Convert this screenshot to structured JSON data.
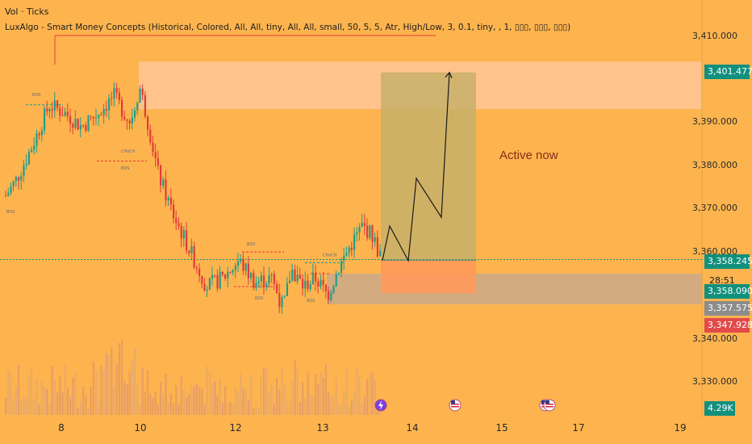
{
  "header": {
    "volume_label": "Vol · Ticks",
    "indicator_label": "LuxAlgo - Smart Money Concepts (Historical, Colored, All, All, tiny, All, All, small, 50, 5, 5, Atr, High/Low, 3, 0.1, tiny, , 1, ▯▯▯, ▯▯▯, ▯▯▯)"
  },
  "annotation": {
    "text": "Active now"
  },
  "price_axis": {
    "ticks": [
      "3,410.000",
      "3,390.000",
      "3,380.000",
      "3,370.000",
      "3,360.000",
      "3,340.000",
      "3,330.000"
    ]
  },
  "time_axis": {
    "ticks": [
      "8",
      "10",
      "12",
      "13",
      "14",
      "15",
      "17",
      "19"
    ]
  },
  "price_badges": {
    "target": "3,401.477",
    "last": "3,358.245",
    "countdown": "28:51",
    "bid": "3,358.090",
    "grey_level": "3,357.575",
    "stop": "3,347.928",
    "volume": "4.29K"
  },
  "smc_labels": [
    "BOS",
    "BOS",
    "CHoCH",
    "BOS",
    "BOS",
    "BOS",
    "CHoCH",
    "BOS"
  ],
  "colors": {
    "background": "#fdb44e",
    "bull_candle": "#1e9e8c",
    "bear_candle": "#e23b3b",
    "target_zone": "#c7b06a",
    "stop_zone": "#ff9a5a",
    "supply_zone": "#ffc8a0",
    "demand_zone": "#cba98a",
    "last_price_badge": "#11907e",
    "stop_badge": "#e24a4a",
    "target_badge": "#11907e"
  },
  "chart_data": {
    "type": "candlestick",
    "y_range": [
      3325,
      3415
    ],
    "x_ticks": [
      "8",
      "10",
      "12",
      "13",
      "14",
      "15",
      "17",
      "19"
    ],
    "last_price": 3358.245,
    "target_price": 3401.477,
    "stop_price": 3347.928,
    "entry_price": 3358.09,
    "projected_path": [
      3358.09,
      3366,
      3358,
      3377,
      3368,
      3401.477
    ],
    "annotation": "Active now"
  }
}
